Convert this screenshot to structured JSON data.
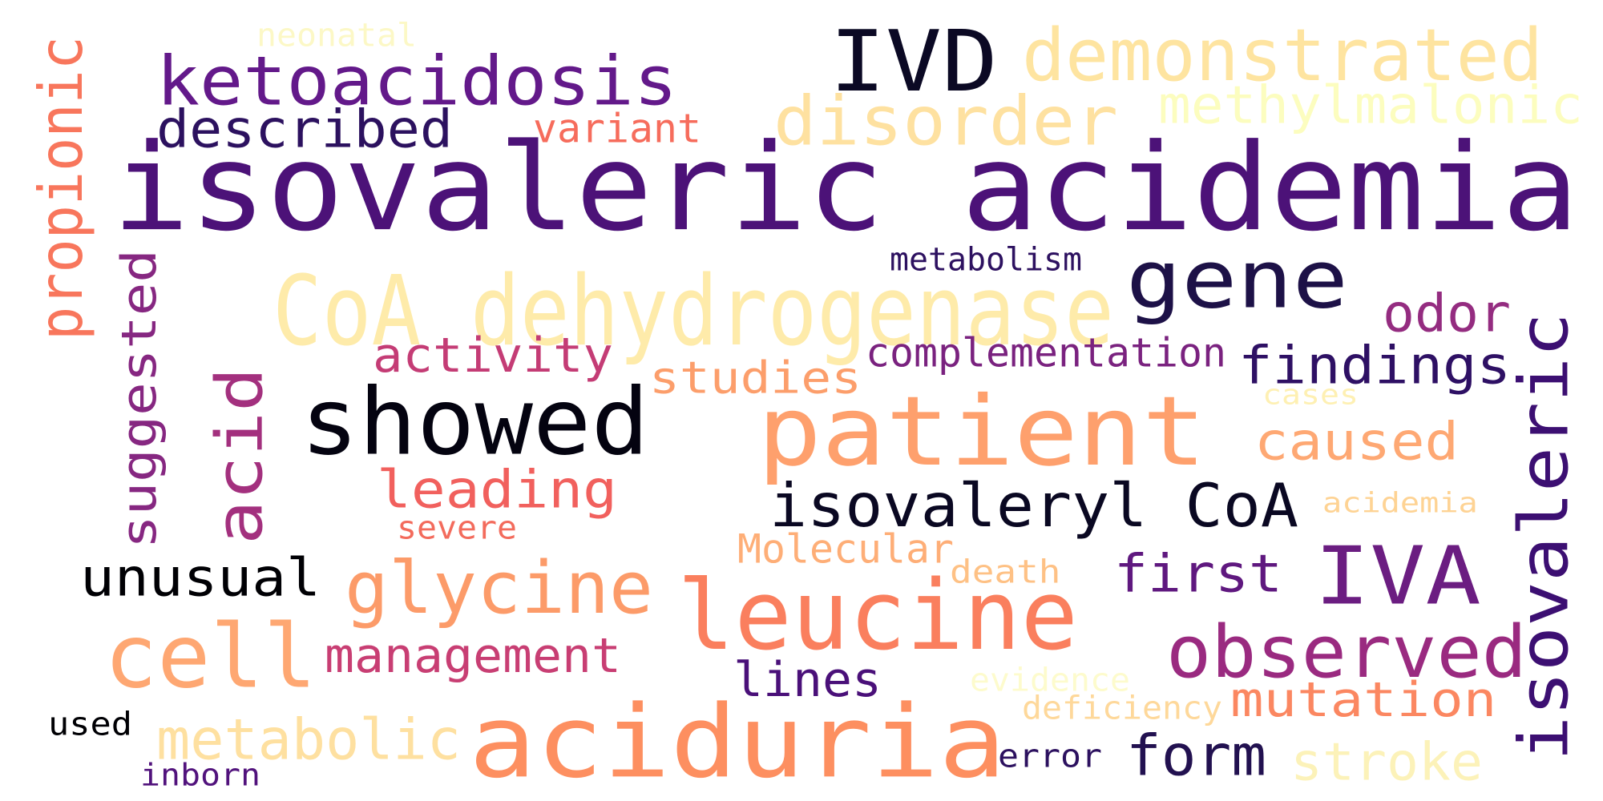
{
  "words": [
    {
      "text": "isovaleric acidemia",
      "color": "#4c1278"
    },
    {
      "text": "aciduria",
      "color": "#fd8f60"
    },
    {
      "text": "patient",
      "color": "#fea06d"
    },
    {
      "text": "leucine",
      "color": "#fa7f5e"
    },
    {
      "text": "CoA dehydrogenase",
      "color": "#feebaa"
    },
    {
      "text": "IVD",
      "color": "#0b0924"
    },
    {
      "text": "showed",
      "color": "#040310"
    },
    {
      "text": "gene",
      "color": "#1d1147"
    },
    {
      "text": "demonstrated",
      "color": "#fee4a0"
    },
    {
      "text": "ketoacidosis",
      "color": "#63198a"
    },
    {
      "text": "disorder",
      "color": "#fee1a0"
    },
    {
      "text": "isovaleric",
      "color": "#3c0f72"
    },
    {
      "text": "acid",
      "color": "#a3307e"
    },
    {
      "text": "cell",
      "color": "#fea772"
    },
    {
      "text": "IVA",
      "color": "#6b1d81"
    },
    {
      "text": "observed",
      "color": "#9a2a80"
    },
    {
      "text": "glycine",
      "color": "#fc9b69"
    },
    {
      "text": "isovaleryl CoA",
      "color": "#0a0822"
    },
    {
      "text": "methylmalonic",
      "color": "#fcfdbf"
    },
    {
      "text": "propionic",
      "color": "#f8765c"
    },
    {
      "text": "suggested",
      "color": "#862781"
    },
    {
      "text": "described",
      "color": "#2c115f"
    },
    {
      "text": "findings",
      "color": "#2e1064"
    },
    {
      "text": "metabolic",
      "color": "#fee0a0"
    },
    {
      "text": "mutation",
      "color": "#fb8761"
    },
    {
      "text": "stroke",
      "color": "#fcf2b9"
    },
    {
      "text": "unusual",
      "color": "#000004"
    },
    {
      "text": "leading",
      "color": "#f1605d"
    },
    {
      "text": "management",
      "color": "#c83e73"
    },
    {
      "text": "first",
      "color": "#5f187f"
    },
    {
      "text": "form",
      "color": "#221150"
    },
    {
      "text": "activity",
      "color": "#c43c75"
    },
    {
      "text": "odor",
      "color": "#942c80"
    },
    {
      "text": "caused",
      "color": "#fea873"
    },
    {
      "text": "studies",
      "color": "#fc9e6b"
    },
    {
      "text": "lines",
      "color": "#4a1079"
    },
    {
      "text": "variant",
      "color": "#f66c5c"
    },
    {
      "text": "complementation",
      "color": "#7a227f"
    },
    {
      "text": "Molecular",
      "color": "#feae77"
    },
    {
      "text": "metabolism",
      "color": "#2d1160"
    },
    {
      "text": "neonatal",
      "color": "#fcf8c6"
    },
    {
      "text": "evidence",
      "color": "#fdfbcd"
    },
    {
      "text": "deficiency",
      "color": "#fed89a"
    },
    {
      "text": "acidemia",
      "color": "#fed394"
    },
    {
      "text": "death",
      "color": "#fec185"
    },
    {
      "text": "severe",
      "color": "#f36b5c"
    },
    {
      "text": "cases",
      "color": "#fef0b3"
    },
    {
      "text": "error",
      "color": "#2c115f"
    },
    {
      "text": "inborn",
      "color": "#51127c"
    },
    {
      "text": "used",
      "color": "#000004"
    }
  ]
}
